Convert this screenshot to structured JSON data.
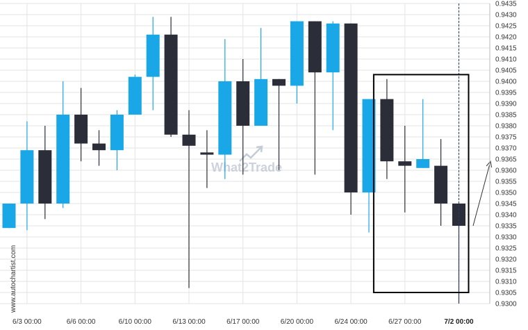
{
  "source_label": "www.autochartist.com",
  "watermark": "What2Trade",
  "colors": {
    "up": "#1aa7e8",
    "down": "#2b2d38",
    "grid": "#e3e3e3",
    "pattern_box": "#000000",
    "marker_line": "#1f3a6e",
    "arrow": "#333333"
  },
  "chart_data": {
    "type": "candlestick",
    "title": "",
    "xlabel": "",
    "ylabel": "",
    "ylim": [
      0.93,
      0.9435
    ],
    "y_ticks": [
      "0.9300",
      "0.9305",
      "0.9310",
      "0.9315",
      "0.9320",
      "0.9325",
      "0.9330",
      "0.9335",
      "0.9340",
      "0.9345",
      "0.9350",
      "0.9355",
      "0.9360",
      "0.9365",
      "0.9370",
      "0.9375",
      "0.9380",
      "0.9385",
      "0.9390",
      "0.9395",
      "0.9400",
      "0.9405",
      "0.9410",
      "0.9415",
      "0.9420",
      "0.9425",
      "0.9430",
      "0.9435"
    ],
    "x_tick_labels": [
      {
        "label": "6/3 00:00",
        "index": 1,
        "bold": false
      },
      {
        "label": "6/6 00:00",
        "index": 4,
        "bold": false
      },
      {
        "label": "6/10 00:00",
        "index": 7,
        "bold": false
      },
      {
        "label": "6/13 00:00",
        "index": 10,
        "bold": false
      },
      {
        "label": "6/17 00:00",
        "index": 13,
        "bold": false
      },
      {
        "label": "6/20 00:00",
        "index": 16,
        "bold": false
      },
      {
        "label": "6/24 00:00",
        "index": 19,
        "bold": false
      },
      {
        "label": "6/27 00:00",
        "index": 22,
        "bold": false
      },
      {
        "label": "7/2 00:00",
        "index": 25,
        "bold": true
      }
    ],
    "candles": [
      {
        "o": 0.9334,
        "h": 0.9345,
        "l": 0.9334,
        "c": 0.9345
      },
      {
        "o": 0.9345,
        "h": 0.9382,
        "l": 0.9333,
        "c": 0.9369
      },
      {
        "o": 0.9369,
        "h": 0.938,
        "l": 0.9338,
        "c": 0.9345
      },
      {
        "o": 0.9345,
        "h": 0.94,
        "l": 0.9343,
        "c": 0.9385
      },
      {
        "o": 0.9385,
        "h": 0.9397,
        "l": 0.9364,
        "c": 0.9372
      },
      {
        "o": 0.9372,
        "h": 0.9378,
        "l": 0.9362,
        "c": 0.9369
      },
      {
        "o": 0.9369,
        "h": 0.9387,
        "l": 0.936,
        "c": 0.9385
      },
      {
        "o": 0.9385,
        "h": 0.9403,
        "l": 0.9385,
        "c": 0.9402
      },
      {
        "o": 0.9402,
        "h": 0.9429,
        "l": 0.9387,
        "c": 0.9421
      },
      {
        "o": 0.9421,
        "h": 0.9429,
        "l": 0.9375,
        "c": 0.9376
      },
      {
        "o": 0.9376,
        "h": 0.9387,
        "l": 0.9307,
        "c": 0.9371
      },
      {
        "o": 0.9368,
        "h": 0.9378,
        "l": 0.9352,
        "c": 0.9367
      },
      {
        "o": 0.9367,
        "h": 0.9419,
        "l": 0.9356,
        "c": 0.94
      },
      {
        "o": 0.94,
        "h": 0.941,
        "l": 0.9358,
        "c": 0.938
      },
      {
        "o": 0.938,
        "h": 0.9424,
        "l": 0.938,
        "c": 0.9401
      },
      {
        "o": 0.9401,
        "h": 0.9401,
        "l": 0.936,
        "c": 0.9398
      },
      {
        "o": 0.9398,
        "h": 0.9427,
        "l": 0.939,
        "c": 0.9427
      },
      {
        "o": 0.9427,
        "h": 0.9427,
        "l": 0.9358,
        "c": 0.9404
      },
      {
        "o": 0.9404,
        "h": 0.9427,
        "l": 0.9378,
        "c": 0.9426
      },
      {
        "o": 0.9426,
        "h": 0.9426,
        "l": 0.934,
        "c": 0.935
      },
      {
        "o": 0.935,
        "h": 0.9392,
        "l": 0.9332,
        "c": 0.9392
      },
      {
        "o": 0.9392,
        "h": 0.9401,
        "l": 0.9356,
        "c": 0.9364
      },
      {
        "o": 0.9364,
        "h": 0.938,
        "l": 0.9341,
        "c": 0.9362
      },
      {
        "o": 0.9361,
        "h": 0.9392,
        "l": 0.9361,
        "c": 0.9365
      },
      {
        "o": 0.9362,
        "h": 0.9374,
        "l": 0.9335,
        "c": 0.9345
      },
      {
        "o": 0.9345,
        "h": 0.9345,
        "l": 0.93,
        "c": 0.9335
      }
    ],
    "pattern_box": {
      "from_index": 21,
      "to_index": 25,
      "y_top": 0.9403,
      "y_bottom": 0.9305
    },
    "marker_index": 25,
    "forecast_arrow": {
      "from": 0.9335,
      "to": 0.9364
    },
    "grid": true
  }
}
